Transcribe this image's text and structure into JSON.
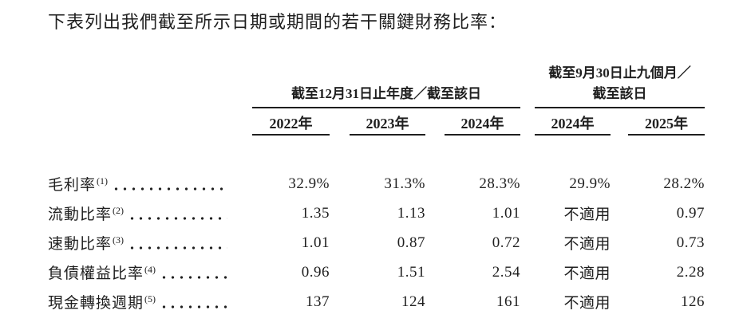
{
  "page": {
    "intro": "下表列出我們截至所示日期或期間的若干關鍵財務比率："
  },
  "table": {
    "group1": {
      "label": "截至12月31日止年度／截至該日",
      "years": [
        "2022年",
        "2023年",
        "2024年"
      ]
    },
    "group2": {
      "label_line1": "截至9月30日止九個月／",
      "label_line2": "截至該日",
      "years": [
        "2024年",
        "2025年"
      ]
    },
    "rows": [
      {
        "label": "毛利率",
        "footnote": "(1)",
        "v1": "32.9%",
        "v2": "31.3%",
        "v3": "28.3%",
        "v4": "29.9%",
        "v5": "28.2%"
      },
      {
        "label": "流動比率",
        "footnote": "(2)",
        "v1": "1.35",
        "v2": "1.13",
        "v3": "1.01",
        "v4": "不適用",
        "v5": "0.97"
      },
      {
        "label": "速動比率",
        "footnote": "(3)",
        "v1": "1.01",
        "v2": "0.87",
        "v3": "0.72",
        "v4": "不適用",
        "v5": "0.73"
      },
      {
        "label": "負債權益比率",
        "footnote": "(4)",
        "v1": "0.96",
        "v2": "1.51",
        "v3": "2.54",
        "v4": "不適用",
        "v5": "2.28"
      },
      {
        "label": "現金轉換週期",
        "footnote": "(5)",
        "v1": "137",
        "v2": "124",
        "v3": "161",
        "v4": "不適用",
        "v5": "126"
      }
    ]
  },
  "colors": {
    "text": "#1f1f1f",
    "rule": "#1f1f1f",
    "background": "#ffffff"
  }
}
